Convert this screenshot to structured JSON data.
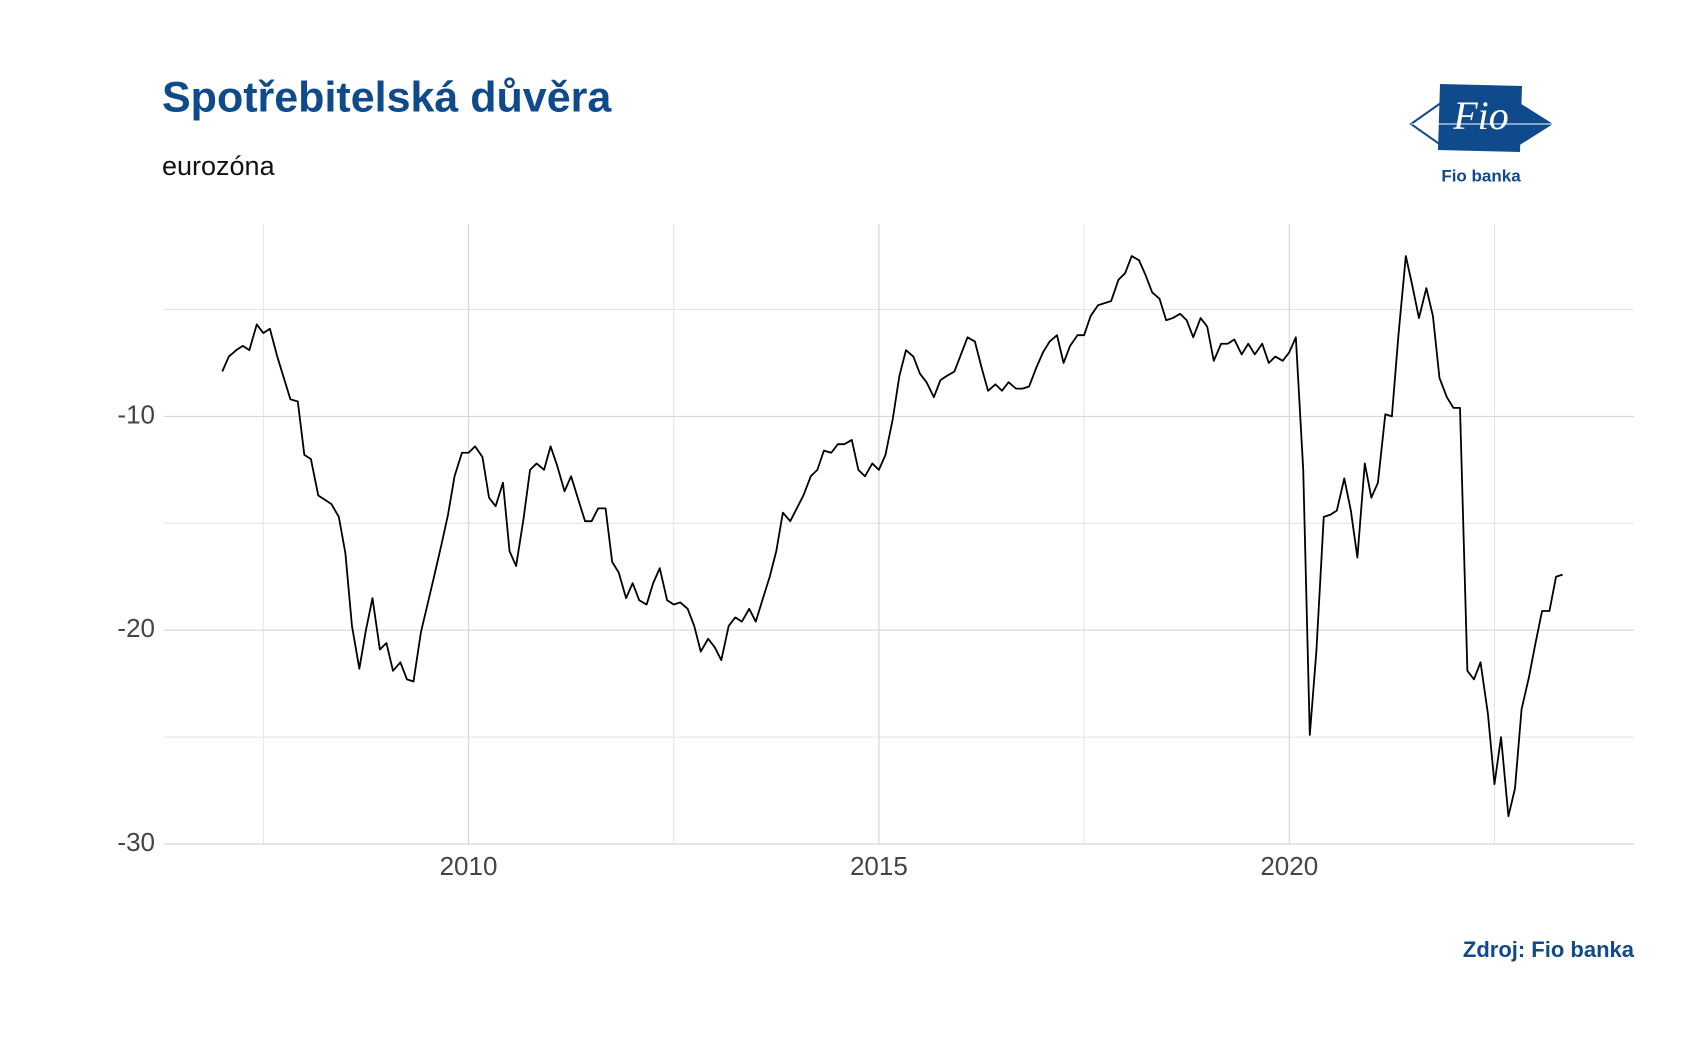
{
  "chart_data": {
    "type": "line",
    "title": "Spotřebitelská důvěra",
    "subtitle": "eurozóna",
    "source": "Zdroj: Fio banka",
    "logo": {
      "mark": "Fio",
      "name": "Fio banka"
    },
    "color": "#000000",
    "grid": true,
    "xlim": [
      2006.29,
      2024.2
    ],
    "ylim": [
      -30,
      -1
    ],
    "xticks": [
      2010,
      2015,
      2020
    ],
    "yticks": [
      -30,
      -20,
      -10
    ],
    "x_minor_ticks": [
      2007.5,
      2012.5,
      2017.5,
      2022.5
    ],
    "y_minor_ticks": [
      -25,
      -15,
      -5
    ],
    "x": [
      2007.0,
      2007.08,
      2007.17,
      2007.25,
      2007.33,
      2007.42,
      2007.5,
      2007.58,
      2007.67,
      2007.75,
      2007.83,
      2007.92,
      2008.0,
      2008.08,
      2008.17,
      2008.25,
      2008.33,
      2008.42,
      2008.5,
      2008.58,
      2008.67,
      2008.75,
      2008.83,
      2008.92,
      2009.0,
      2009.08,
      2009.17,
      2009.25,
      2009.33,
      2009.42,
      2009.5,
      2009.58,
      2009.67,
      2009.75,
      2009.83,
      2009.92,
      2010.0,
      2010.08,
      2010.17,
      2010.25,
      2010.33,
      2010.42,
      2010.5,
      2010.58,
      2010.67,
      2010.75,
      2010.83,
      2010.92,
      2011.0,
      2011.08,
      2011.17,
      2011.25,
      2011.33,
      2011.42,
      2011.5,
      2011.58,
      2011.67,
      2011.75,
      2011.83,
      2011.92,
      2012.0,
      2012.08,
      2012.17,
      2012.25,
      2012.33,
      2012.42,
      2012.5,
      2012.58,
      2012.67,
      2012.75,
      2012.83,
      2012.92,
      2013.0,
      2013.08,
      2013.17,
      2013.25,
      2013.33,
      2013.42,
      2013.5,
      2013.58,
      2013.67,
      2013.75,
      2013.83,
      2013.92,
      2014.0,
      2014.08,
      2014.17,
      2014.25,
      2014.33,
      2014.42,
      2014.5,
      2014.58,
      2014.67,
      2014.75,
      2014.83,
      2014.92,
      2015.0,
      2015.08,
      2015.17,
      2015.25,
      2015.33,
      2015.42,
      2015.5,
      2015.58,
      2015.67,
      2015.75,
      2015.83,
      2015.92,
      2016.0,
      2016.08,
      2016.17,
      2016.25,
      2016.33,
      2016.42,
      2016.5,
      2016.58,
      2016.67,
      2016.75,
      2016.83,
      2016.92,
      2017.0,
      2017.08,
      2017.17,
      2017.25,
      2017.33,
      2017.42,
      2017.5,
      2017.58,
      2017.67,
      2017.75,
      2017.83,
      2017.92,
      2018.0,
      2018.08,
      2018.17,
      2018.25,
      2018.33,
      2018.42,
      2018.5,
      2018.58,
      2018.67,
      2018.75,
      2018.83,
      2018.92,
      2019.0,
      2019.08,
      2019.17,
      2019.25,
      2019.33,
      2019.42,
      2019.5,
      2019.58,
      2019.67,
      2019.75,
      2019.83,
      2019.92,
      2020.0,
      2020.08,
      2020.17,
      2020.25,
      2020.33,
      2020.42,
      2020.5,
      2020.58,
      2020.67,
      2020.75,
      2020.83,
      2020.92,
      2021.0,
      2021.08,
      2021.17,
      2021.25,
      2021.33,
      2021.42,
      2021.5,
      2021.58,
      2021.67,
      2021.75,
      2021.83,
      2021.92,
      2022.0,
      2022.08,
      2022.17,
      2022.25,
      2022.33,
      2022.42,
      2022.5,
      2022.58,
      2022.67,
      2022.75,
      2022.83,
      2022.92,
      2023.0,
      2023.08,
      2023.17,
      2023.25,
      2023.33
    ],
    "values": [
      -7.9,
      -7.2,
      -6.9,
      -6.7,
      -6.9,
      -5.7,
      -6.1,
      -5.9,
      -7.2,
      -8.2,
      -9.2,
      -9.3,
      -11.8,
      -12.0,
      -13.7,
      -13.9,
      -14.1,
      -14.7,
      -16.4,
      -19.8,
      -21.8,
      -20.0,
      -18.5,
      -20.9,
      -20.6,
      -21.9,
      -21.5,
      -22.3,
      -22.4,
      -20.1,
      -18.8,
      -17.5,
      -16.0,
      -14.6,
      -12.8,
      -11.7,
      -11.7,
      -11.4,
      -11.9,
      -13.8,
      -14.2,
      -13.1,
      -16.3,
      -17.0,
      -14.8,
      -12.5,
      -12.2,
      -12.5,
      -11.4,
      -12.3,
      -13.5,
      -12.8,
      -13.8,
      -14.9,
      -14.9,
      -14.3,
      -14.3,
      -16.8,
      -17.3,
      -18.5,
      -17.8,
      -18.6,
      -18.8,
      -17.8,
      -17.1,
      -18.6,
      -18.8,
      -18.7,
      -19.0,
      -19.8,
      -21.0,
      -20.4,
      -20.8,
      -21.4,
      -19.8,
      -19.4,
      -19.6,
      -19.0,
      -19.6,
      -18.6,
      -17.5,
      -16.3,
      -14.5,
      -14.9,
      -14.3,
      -13.7,
      -12.8,
      -12.5,
      -11.6,
      -11.7,
      -11.3,
      -11.3,
      -11.1,
      -12.5,
      -12.8,
      -12.2,
      -12.5,
      -11.8,
      -10.1,
      -8.1,
      -6.9,
      -7.2,
      -8.0,
      -8.4,
      -9.1,
      -8.3,
      -8.1,
      -7.9,
      -7.1,
      -6.3,
      -6.5,
      -7.7,
      -8.8,
      -8.5,
      -8.8,
      -8.4,
      -8.7,
      -8.7,
      -8.6,
      -7.7,
      -7.0,
      -6.5,
      -6.2,
      -7.5,
      -6.7,
      -6.2,
      -6.2,
      -5.3,
      -4.8,
      -4.7,
      -4.6,
      -3.6,
      -3.3,
      -2.5,
      -2.7,
      -3.4,
      -4.2,
      -4.5,
      -5.5,
      -5.4,
      -5.2,
      -5.5,
      -6.3,
      -5.4,
      -5.8,
      -7.4,
      -6.6,
      -6.6,
      -6.4,
      -7.1,
      -6.6,
      -7.1,
      -6.6,
      -7.5,
      -7.2,
      -7.4,
      -7.0,
      -6.3,
      -12.5,
      -24.9,
      -21.0,
      -14.7,
      -14.6,
      -14.4,
      -12.9,
      -14.4,
      -16.6,
      -12.2,
      -13.8,
      -13.1,
      -9.9,
      -10.0,
      -6.2,
      -2.5,
      -3.9,
      -5.4,
      -4.0,
      -5.3,
      -8.2,
      -9.1,
      -9.6,
      -9.6,
      -21.9,
      -22.3,
      -21.5,
      -23.9,
      -27.2,
      -25.0,
      -28.7,
      -27.4,
      -23.7,
      -22.2,
      -20.6,
      -19.1,
      -19.1,
      -17.5,
      -17.4
    ]
  }
}
